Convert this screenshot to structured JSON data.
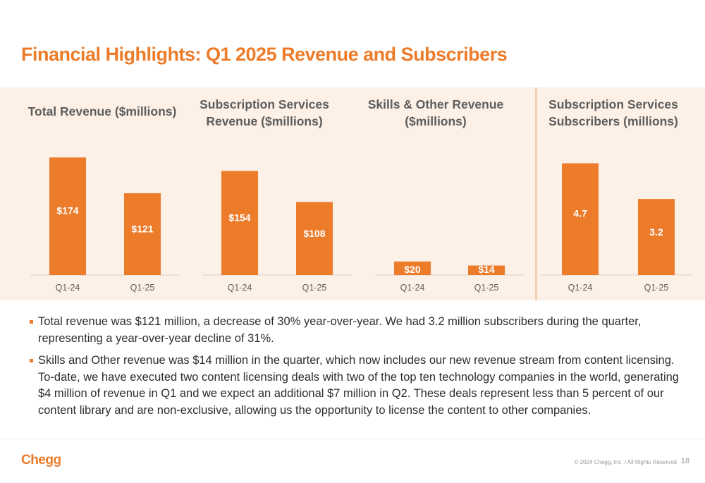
{
  "title": "Financial Highlights: Q1 2025 Revenue and Subscribers",
  "colors": {
    "accent": "#ec7b2a",
    "band": "#fdf0e6",
    "bar_label": "#ffffff"
  },
  "chart_data": [
    {
      "type": "bar",
      "title_lines": [
        "Total Revenue ($millions)"
      ],
      "categories": [
        "Q1-24",
        "Q1-25"
      ],
      "values": [
        174,
        121
      ],
      "labels": [
        "$174",
        "$121"
      ],
      "ylim": [
        0,
        190
      ]
    },
    {
      "type": "bar",
      "title_lines": [
        "Subscription Services",
        "Revenue ($millions)"
      ],
      "categories": [
        "Q1-24",
        "Q1-25"
      ],
      "values": [
        154,
        108
      ],
      "labels": [
        "$154",
        "$108"
      ],
      "ylim": [
        0,
        190
      ]
    },
    {
      "type": "bar",
      "title_lines": [
        "Skills & Other Revenue",
        "($millions)"
      ],
      "categories": [
        "Q1-24",
        "Q1-25"
      ],
      "values": [
        20,
        14
      ],
      "labels": [
        "$20",
        "$14"
      ],
      "ylim": [
        0,
        190
      ]
    },
    {
      "type": "bar",
      "title_lines": [
        "Subscription Services",
        "Subscribers (millions)"
      ],
      "categories": [
        "Q1-24",
        "Q1-25"
      ],
      "values": [
        4.7,
        3.2
      ],
      "labels": [
        "4.7",
        "3.2"
      ],
      "ylim": [
        0,
        5.4
      ]
    }
  ],
  "bullets": [
    "Total revenue was $121 million, a decrease of 30% year-over-year. We had 3.2 million subscribers during the quarter, representing a year-over-year decline of 31%.",
    "Skills and Other revenue was $14 million in the quarter, which now includes our new revenue stream from content licensing. To-date, we have executed two content licensing deals with two of the top ten technology companies in the world, generating $4 million of revenue in Q1 and we expect an additional $7 million in Q2. These deals represent less than 5 percent of our content library and are non-exclusive, allowing us the opportunity to license the content to other companies."
  ],
  "footer": {
    "logo": "Chegg",
    "copyright": "© 2024 Chegg, Inc. / All Rights Reserved",
    "page_number": "18"
  }
}
